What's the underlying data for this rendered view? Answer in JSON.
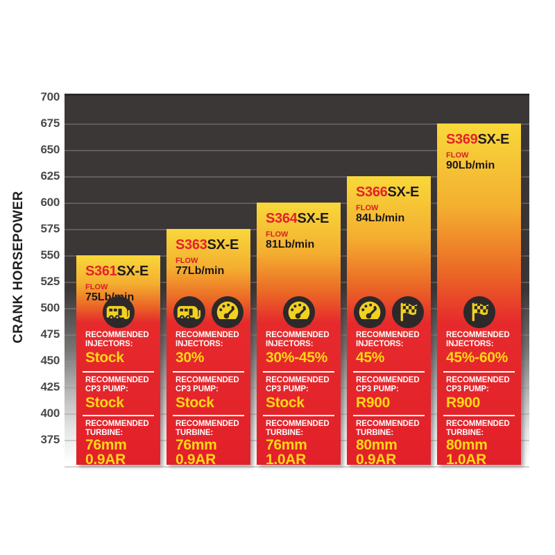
{
  "page": {
    "background": "#ffffff"
  },
  "chart_data": {
    "type": "bar",
    "title": "",
    "xlabel": "",
    "ylabel": "CRANK HORSEPOWER",
    "ylim": [
      350,
      700
    ],
    "grid": true,
    "legend": "none",
    "y_axis": {
      "ticks": [
        "700",
        "675",
        "650",
        "625",
        "600",
        "575",
        "550",
        "525",
        "500",
        "475",
        "450",
        "425",
        "400",
        "375"
      ],
      "step": 25
    },
    "categories": [
      "S361SX-E",
      "S363SX-E",
      "S364SX-E",
      "S366SX-E",
      "S369SX-E"
    ],
    "values": [
      550,
      575,
      600,
      625,
      675
    ],
    "products": [
      {
        "model_prefix": "S361",
        "model_suffix": "SX-E",
        "flow_label": "FLOW",
        "flow": "75Lb/min",
        "crank_horsepower": 550,
        "icons": [
          "rv-icon"
        ],
        "sections": [
          {
            "label_lines": [
              "RECOMMENDED",
              "INJECTORS:"
            ],
            "value": "Stock"
          },
          {
            "label_lines": [
              "RECOMMENDED",
              "CP3 PUMP:"
            ],
            "value": "Stock"
          },
          {
            "label_lines": [
              "RECOMMENDED",
              "TURBINE:"
            ],
            "value": "76mm 0.9AR",
            "value_lines": [
              "76mm",
              "0.9AR"
            ]
          }
        ]
      },
      {
        "model_prefix": "S363",
        "model_suffix": "SX-E",
        "flow_label": "FLOW",
        "flow": "77Lb/min",
        "crank_horsepower": 575,
        "icons": [
          "rv-icon",
          "gauge-icon"
        ],
        "sections": [
          {
            "label_lines": [
              "RECOMMENDED",
              "INJECTORS:"
            ],
            "value": "30%"
          },
          {
            "label_lines": [
              "RECOMMENDED",
              "CP3 PUMP:"
            ],
            "value": "Stock"
          },
          {
            "label_lines": [
              "RECOMMENDED",
              "TURBINE:"
            ],
            "value": "76mm 0.9AR",
            "value_lines": [
              "76mm",
              "0.9AR"
            ]
          }
        ]
      },
      {
        "model_prefix": "S364",
        "model_suffix": "SX-E",
        "flow_label": "FLOW",
        "flow": "81Lb/min",
        "crank_horsepower": 600,
        "icons": [
          "gauge-icon"
        ],
        "sections": [
          {
            "label_lines": [
              "RECOMMENDED",
              "INJECTORS:"
            ],
            "value": "30%-45%"
          },
          {
            "label_lines": [
              "RECOMMENDED",
              "CP3 PUMP:"
            ],
            "value": "Stock"
          },
          {
            "label_lines": [
              "RECOMMENDED",
              "TURBINE:"
            ],
            "value": "76mm 1.0AR",
            "value_lines": [
              "76mm",
              "1.0AR"
            ]
          }
        ]
      },
      {
        "model_prefix": "S366",
        "model_suffix": "SX-E",
        "flow_label": "FLOW",
        "flow": "84Lb/min",
        "crank_horsepower": 625,
        "icons": [
          "gauge-icon",
          "checkered-flag-icon"
        ],
        "sections": [
          {
            "label_lines": [
              "RECOMMENDED",
              "INJECTORS:"
            ],
            "value": "45%"
          },
          {
            "label_lines": [
              "RECOMMENDED",
              "CP3 PUMP:"
            ],
            "value": "R900"
          },
          {
            "label_lines": [
              "RECOMMENDED",
              "TURBINE:"
            ],
            "value": "80mm 0.9AR",
            "value_lines": [
              "80mm",
              "0.9AR"
            ]
          }
        ]
      },
      {
        "model_prefix": "S369",
        "model_suffix": "SX-E",
        "flow_label": "FLOW",
        "flow": "90Lb/min",
        "crank_horsepower": 675,
        "icons": [
          "checkered-flag-icon"
        ],
        "sections": [
          {
            "label_lines": [
              "RECOMMENDED",
              "INJECTORS:"
            ],
            "value": "45%-60%"
          },
          {
            "label_lines": [
              "RECOMMENDED",
              "CP3 PUMP:"
            ],
            "value": "R900"
          },
          {
            "label_lines": [
              "RECOMMENDED",
              "TURBINE:"
            ],
            "value": "80mm 1.0AR",
            "value_lines": [
              "80mm",
              "1.0AR"
            ]
          }
        ]
      }
    ],
    "colors": {
      "plot_background_top": "#3b3737",
      "plot_background_bottom": "#ffffff",
      "gridline": "#8c898a",
      "bar_gradient_top": "#f8d83a",
      "bar_gradient_mid": "#eb6a26",
      "bar_gradient_bottom": "#e2202a",
      "model_prefix_red": "#e5212b",
      "model_suffix_black": "#1d1a1b",
      "value_yellow": "#fed715",
      "label_white": "#ffffff",
      "icon_circle": "#2d292a",
      "icon_glyph": "#f2d21f",
      "axis_text": "#4b4849"
    }
  }
}
